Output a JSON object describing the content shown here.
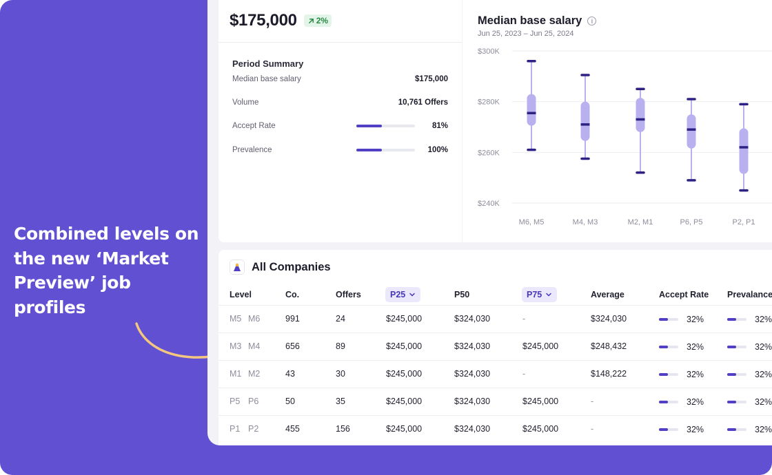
{
  "promo": {
    "headline": "Combined levels on the new ‘Market Preview’ job profiles"
  },
  "summary": {
    "price": "$175,000",
    "change_badge": "2%",
    "title": "Period Summary",
    "rows": [
      {
        "label": "Median base salary",
        "value": "$175,000"
      },
      {
        "label": "Volume",
        "value": "10,761 Offers"
      },
      {
        "label": "Accept Rate",
        "value": "81%",
        "fill": 0.43
      },
      {
        "label": "Prevalence",
        "value": "100%",
        "fill": 0.43
      }
    ]
  },
  "chart": {
    "title": "Median base salary",
    "subtitle": "Jun 25, 2023 – Jun 25, 2024"
  },
  "chart_data": {
    "type": "box",
    "title": "Median base salary",
    "subtitle": "Jun 25, 2023 – Jun 25, 2024",
    "categories": [
      "M6, M5",
      "M4, M3",
      "M2, M1",
      "P6, P5",
      "P2, P1"
    ],
    "y_ticks": [
      "$300K",
      "$280K",
      "$260K",
      "$240K"
    ],
    "y_tick_values": [
      300,
      280,
      260,
      240
    ],
    "ylim": [
      240,
      300
    ],
    "boxes": [
      {
        "min": 261,
        "q1": 270.5,
        "median": 275.5,
        "q3": 283,
        "max": 296
      },
      {
        "min": 257.5,
        "q1": 264.5,
        "median": 271,
        "q3": 280,
        "max": 290.5
      },
      {
        "min": 252,
        "q1": 268,
        "median": 273,
        "q3": 281.5,
        "max": 285
      },
      {
        "min": 249,
        "q1": 261.5,
        "median": 269,
        "q3": 275,
        "max": 281
      },
      {
        "min": 245,
        "q1": 251.5,
        "median": 262,
        "q3": 269.5,
        "max": 279
      }
    ],
    "colors": {
      "box": "#b9b0f0",
      "whisker": "#b9b0f0",
      "cap": "#2d2184",
      "median": "#2d2184"
    },
    "grid": true
  },
  "table": {
    "title": "All Companies",
    "columns": {
      "level": "Level",
      "co": "Co.",
      "offers": "Offers",
      "p25": "P25",
      "p50": "P50",
      "p75": "P75",
      "average": "Average",
      "accept": "Accept Rate",
      "prevalence": "Prevalance"
    },
    "rows": [
      {
        "lvl_a": "M5",
        "lvl_b": "M6",
        "co": "991",
        "offers": "24",
        "p25": "$245,000",
        "p50": "$324,030",
        "p75": "-",
        "average": "$324,030",
        "accept": "32%",
        "prev": "32%"
      },
      {
        "lvl_a": "M3",
        "lvl_b": "M4",
        "co": "656",
        "offers": "89",
        "p25": "$245,000",
        "p50": "$324,030",
        "p75": "$245,000",
        "average": "$248,432",
        "accept": "32%",
        "prev": "32%"
      },
      {
        "lvl_a": "M1",
        "lvl_b": "M2",
        "co": "43",
        "offers": "30",
        "p25": "$245,000",
        "p50": "$324,030",
        "p75": "-",
        "average": "$148,222",
        "accept": "32%",
        "prev": "32%"
      },
      {
        "lvl_a": "P5",
        "lvl_b": "P6",
        "co": "50",
        "offers": "35",
        "p25": "$245,000",
        "p50": "$324,030",
        "p75": "$245,000",
        "average": "-",
        "accept": "32%",
        "prev": "32%"
      },
      {
        "lvl_a": "P1",
        "lvl_b": "P2",
        "co": "455",
        "offers": "156",
        "p25": "$245,000",
        "p50": "$324,030",
        "p75": "$245,000",
        "average": "-",
        "accept": "32%",
        "prev": "32%"
      }
    ],
    "bar_fill": 0.45
  },
  "colors": {
    "brand": "#6150d2",
    "accent": "#5240c4",
    "positive": "#2b8a46"
  }
}
